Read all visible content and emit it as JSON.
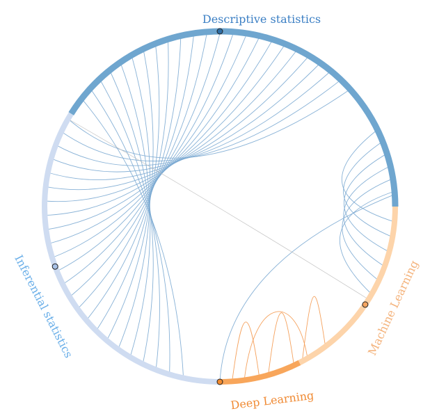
{
  "groups": [
    {
      "id": "descriptive",
      "label": "Descriptive statistics",
      "color": "#6fa6cf",
      "node_color": "#2e6da4"
    },
    {
      "id": "machine",
      "label": "Machine Learning",
      "color": "#fdd4aa",
      "node_color": "#f4a460"
    },
    {
      "id": "deep",
      "label": "Deep Learning",
      "color": "#f8a65b",
      "node_color": "#f28a2e"
    },
    {
      "id": "inferential",
      "label": "Inferential statistics",
      "color": "#cfdcf1",
      "node_color": "#a8c1e6"
    }
  ],
  "label_colors": {
    "descriptive": "#3b7fc4",
    "machine": "#f4b27a",
    "deep": "#f08a33",
    "inferential": "#69aee8"
  },
  "link_colors": {
    "blue": "#7aa9d2",
    "orange": "#f5a25e",
    "gray": "#bbbbbb"
  }
}
